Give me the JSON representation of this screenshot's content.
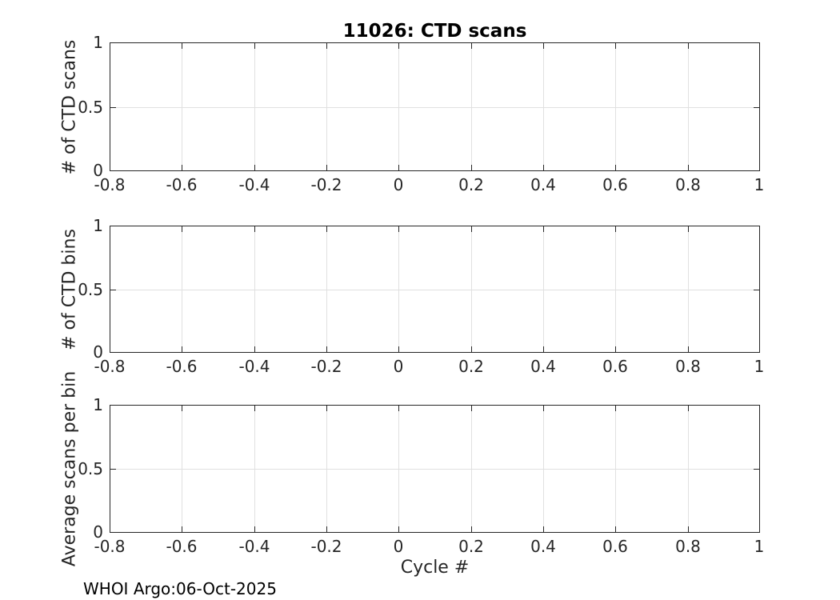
{
  "figure": {
    "title": "11026: CTD scans",
    "xlabel": "Cycle #",
    "footer": "WHOI Argo:06-Oct-2025"
  },
  "colors": {
    "axis": "#262626",
    "grid": "#e0e0e0",
    "title": "#000000",
    "background": "#ffffff"
  },
  "chart_data": [
    {
      "type": "line",
      "title": "11026: CTD scans",
      "xlabel": "",
      "ylabel": "# of CTD scans",
      "xlim": [
        -0.8,
        1
      ],
      "ylim": [
        0,
        1
      ],
      "xticks": [
        -0.8,
        -0.6,
        -0.4,
        -0.2,
        0,
        0.2,
        0.4,
        0.6,
        0.8,
        1
      ],
      "xtick_labels": [
        "-0.8",
        "-0.6",
        "-0.4",
        "-0.2",
        "0",
        "0.2",
        "0.4",
        "0.6",
        "0.8",
        "1"
      ],
      "yticks": [
        0,
        0.5,
        1
      ],
      "ytick_labels": [
        "0",
        "0.5",
        "1"
      ],
      "grid": true,
      "legend": null,
      "series": []
    },
    {
      "type": "line",
      "title": "",
      "xlabel": "",
      "ylabel": "# of CTD bins",
      "xlim": [
        -0.8,
        1
      ],
      "ylim": [
        0,
        1
      ],
      "xticks": [
        -0.8,
        -0.6,
        -0.4,
        -0.2,
        0,
        0.2,
        0.4,
        0.6,
        0.8,
        1
      ],
      "xtick_labels": [
        "-0.8",
        "-0.6",
        "-0.4",
        "-0.2",
        "0",
        "0.2",
        "0.4",
        "0.6",
        "0.8",
        "1"
      ],
      "yticks": [
        0,
        0.5,
        1
      ],
      "ytick_labels": [
        "0",
        "0.5",
        "1"
      ],
      "grid": true,
      "legend": null,
      "series": []
    },
    {
      "type": "line",
      "title": "",
      "xlabel": "Cycle #",
      "ylabel": "Average scans per bin",
      "xlim": [
        -0.8,
        1
      ],
      "ylim": [
        0,
        1
      ],
      "xticks": [
        -0.8,
        -0.6,
        -0.4,
        -0.2,
        0,
        0.2,
        0.4,
        0.6,
        0.8,
        1
      ],
      "xtick_labels": [
        "-0.8",
        "-0.6",
        "-0.4",
        "-0.2",
        "0",
        "0.2",
        "0.4",
        "0.6",
        "0.8",
        "1"
      ],
      "yticks": [
        0,
        0.5,
        1
      ],
      "ytick_labels": [
        "0",
        "0.5",
        "1"
      ],
      "grid": true,
      "legend": null,
      "series": []
    }
  ]
}
